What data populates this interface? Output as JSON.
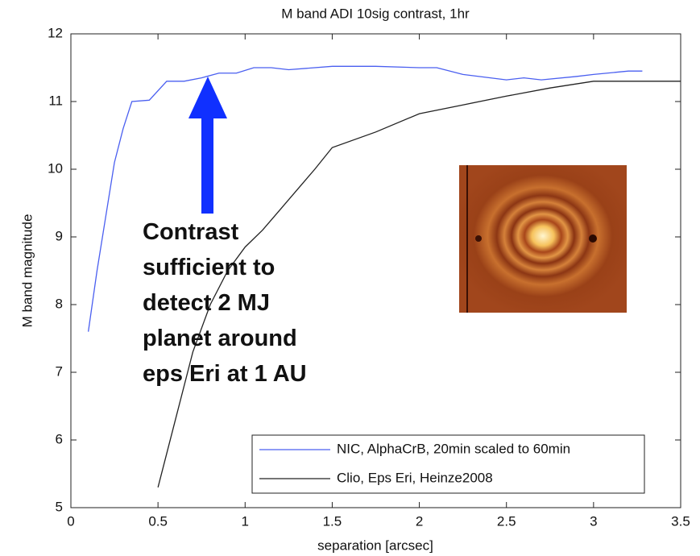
{
  "chart_data": {
    "type": "line",
    "title": "M band ADI 10sig contrast, 1hr",
    "xlabel": "separation [arcsec]",
    "ylabel": "M band magnitude",
    "xlim": [
      0,
      3.5
    ],
    "ylim": [
      5,
      12
    ],
    "xticks": [
      0,
      0.5,
      1,
      1.5,
      2,
      2.5,
      3,
      3.5
    ],
    "yticks": [
      5,
      6,
      7,
      8,
      9,
      10,
      11,
      12
    ],
    "grid": false,
    "legend": "lower right",
    "annotation": [
      "Contrast",
      "sufficient to",
      "detect 2 MJ",
      "planet  around",
      "eps Eri at 1 AU"
    ],
    "series": [
      {
        "name": "NIC, AlphaCrB, 20min scaled to 60min",
        "color": "#4a5ff0",
        "x": [
          0.1,
          0.15,
          0.2,
          0.25,
          0.3,
          0.35,
          0.45,
          0.55,
          0.65,
          0.75,
          0.85,
          0.95,
          1.05,
          1.15,
          1.25,
          1.5,
          1.75,
          2.0,
          2.1,
          2.25,
          2.5,
          2.6,
          2.7,
          2.9,
          3.0,
          3.2,
          3.28
        ],
        "values": [
          7.6,
          8.5,
          9.3,
          10.1,
          10.6,
          11.0,
          11.02,
          11.3,
          11.3,
          11.35,
          11.42,
          11.42,
          11.5,
          11.5,
          11.47,
          11.52,
          11.52,
          11.5,
          11.5,
          11.4,
          11.32,
          11.35,
          11.32,
          11.37,
          11.4,
          11.45,
          11.45
        ]
      },
      {
        "name": "Clio, Eps Eri, Heinze2008",
        "color": "#222222",
        "x": [
          0.5,
          0.6,
          0.7,
          0.8,
          0.9,
          1.0,
          1.1,
          1.2,
          1.3,
          1.4,
          1.5,
          1.75,
          2.0,
          2.25,
          2.5,
          2.75,
          3.0,
          3.5
        ],
        "values": [
          5.3,
          6.3,
          7.3,
          8.0,
          8.5,
          8.85,
          9.1,
          9.4,
          9.7,
          10.0,
          10.32,
          10.55,
          10.82,
          10.95,
          11.08,
          11.2,
          11.3,
          11.3
        ]
      }
    ]
  }
}
